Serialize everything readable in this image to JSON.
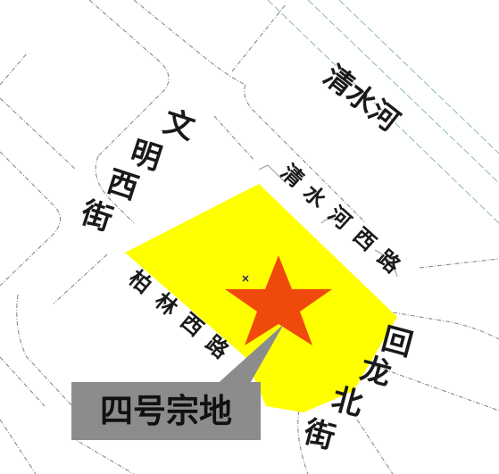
{
  "map": {
    "roads": {
      "qingshuihe": "清水河",
      "wenming_xijie": [
        "文",
        "明",
        "西",
        "街"
      ],
      "qingshuihe_xilu": [
        "清",
        "水",
        "河",
        "西",
        "路"
      ],
      "bolin_xilu": [
        "柏",
        "林",
        "西",
        "路"
      ],
      "huilong_beijie": [
        "回",
        "龙",
        "北",
        "街"
      ]
    },
    "parcel_label": "四号宗地",
    "colors": {
      "parcel_fill": "#ffff00",
      "star_fill": "#ef4a0c",
      "callout_fill": "#8c8c8c",
      "background": "#ffffff"
    },
    "icons": {
      "location_marker": "star-icon",
      "center_point": "cross-marker-icon"
    }
  }
}
